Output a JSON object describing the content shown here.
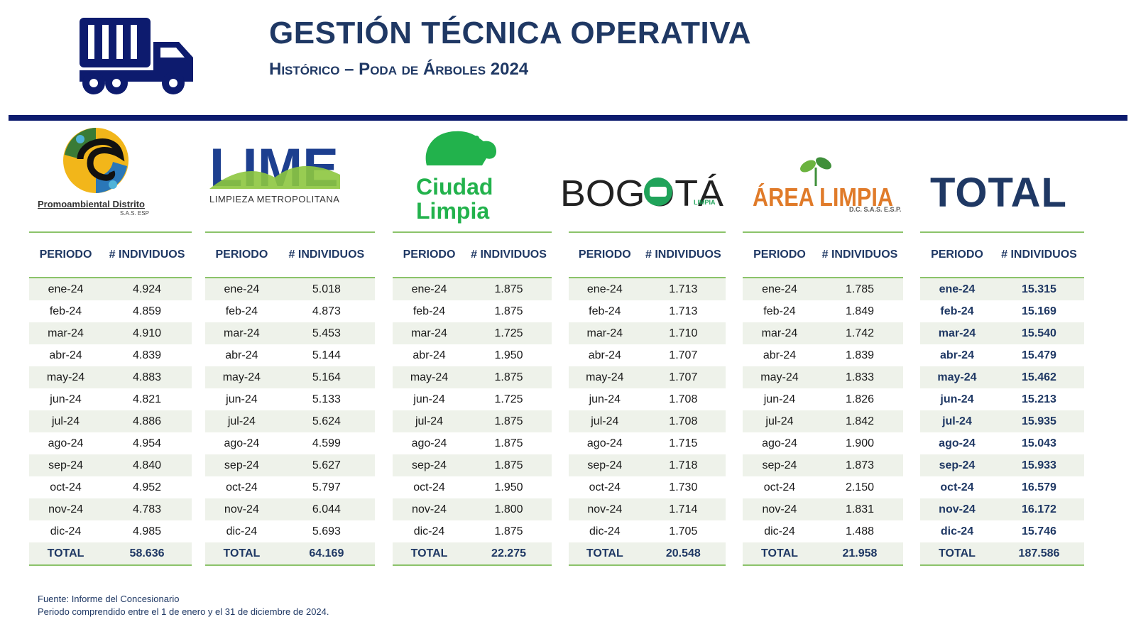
{
  "header": {
    "title": "GESTIÓN TÉCNICA OPERATIVA",
    "subtitle": "Histórico – Poda de Árboles 2024"
  },
  "logos": {
    "promoambiental": {
      "name": "Promoambiental Distrito",
      "tag": "S.A.S. ESP"
    },
    "lime": {
      "name": "LIME",
      "tag": "LIMPIEZA METROPOLITANA"
    },
    "ciudad_limpia": {
      "line1": "Ciudad",
      "line2": "Limpia"
    },
    "bogota_limpia": {
      "name": "BOGOTÁ",
      "tag": "LIMPIA"
    },
    "area_limpia": {
      "name": "ÁREA LIMPIA",
      "tag": "D.C. S.A.S. E.S.P."
    },
    "total": {
      "label": "TOTAL"
    }
  },
  "columns": {
    "period": "PERIODO",
    "count": "# INDIVIDUOS"
  },
  "periods": [
    "ene-24",
    "feb-24",
    "mar-24",
    "abr-24",
    "may-24",
    "jun-24",
    "jul-24",
    "ago-24",
    "sep-24",
    "oct-24",
    "nov-24",
    "dic-24"
  ],
  "total_label": "TOTAL",
  "tables": [
    {
      "id": "promoambiental",
      "values": [
        "4.924",
        "4.859",
        "4.910",
        "4.839",
        "4.883",
        "4.821",
        "4.886",
        "4.954",
        "4.840",
        "4.952",
        "4.783",
        "4.985"
      ],
      "total": "58.636"
    },
    {
      "id": "lime",
      "values": [
        "5.018",
        "4.873",
        "5.453",
        "5.144",
        "5.164",
        "5.133",
        "5.624",
        "4.599",
        "5.627",
        "5.797",
        "6.044",
        "5.693"
      ],
      "total": "64.169"
    },
    {
      "id": "ciudad-limpia",
      "values": [
        "1.875",
        "1.875",
        "1.725",
        "1.950",
        "1.875",
        "1.725",
        "1.875",
        "1.875",
        "1.875",
        "1.950",
        "1.800",
        "1.875"
      ],
      "total": "22.275"
    },
    {
      "id": "bogota-limpia",
      "values": [
        "1.713",
        "1.713",
        "1.710",
        "1.707",
        "1.707",
        "1.708",
        "1.708",
        "1.715",
        "1.718",
        "1.730",
        "1.714",
        "1.705"
      ],
      "total": "20.548"
    },
    {
      "id": "area-limpia",
      "values": [
        "1.785",
        "1.849",
        "1.742",
        "1.839",
        "1.833",
        "1.826",
        "1.842",
        "1.900",
        "1.873",
        "2.150",
        "1.831",
        "1.488"
      ],
      "total": "21.958"
    },
    {
      "id": "total",
      "values": [
        "15.315",
        "15.169",
        "15.540",
        "15.479",
        "15.462",
        "15.213",
        "15.935",
        "15.043",
        "15.933",
        "16.579",
        "16.172",
        "15.746"
      ],
      "total": "187.586"
    }
  ],
  "footer": {
    "source": "Fuente: Informe del Concesionario",
    "period": "Periodo comprendido entre el 1 de enero y el 31 de diciembre de 2024."
  }
}
